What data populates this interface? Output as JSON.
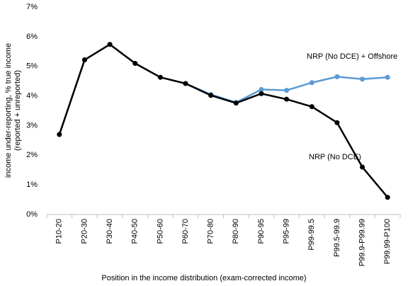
{
  "chart_data": {
    "type": "line",
    "ylabel": [
      "income under-reporting, % true income",
      "(reported + unreported)"
    ],
    "xlabel": "Position in the income distribution (exam-corrected income)",
    "categories": [
      "P10-20",
      "P20-30",
      "P30-40",
      "P40-50",
      "P50-60",
      "P60-70",
      "P70-80",
      "P80-90",
      "P90-95",
      "P95-99",
      "P99-99.5",
      "P99.5-99.9",
      "P99.9-P99.99",
      "P99.99-P100"
    ],
    "series": [
      {
        "name": "NRP (No DCE) + Offshore",
        "color": "#5b9bd5",
        "values": [
          2.7,
          5.22,
          5.74,
          5.1,
          4.63,
          4.42,
          4.05,
          3.78,
          4.22,
          4.19,
          4.45,
          4.65,
          4.57,
          4.63
        ]
      },
      {
        "name": "NRP (No DCE)",
        "color": "#000000",
        "values": [
          2.7,
          5.22,
          5.74,
          5.1,
          4.63,
          4.42,
          4.02,
          3.76,
          4.08,
          3.89,
          3.64,
          3.1,
          1.6,
          0.58
        ]
      }
    ],
    "ylim": [
      0,
      7
    ],
    "yticks": [
      {
        "value": 0,
        "label": "0%"
      },
      {
        "value": 1,
        "label": "1%"
      },
      {
        "value": 2,
        "label": "2%"
      },
      {
        "value": 3,
        "label": "3%"
      },
      {
        "value": 4,
        "label": "4%"
      },
      {
        "value": 5,
        "label": "5%"
      },
      {
        "value": 6,
        "label": "6%"
      },
      {
        "value": 7,
        "label": "7%"
      }
    ],
    "grid": false
  }
}
